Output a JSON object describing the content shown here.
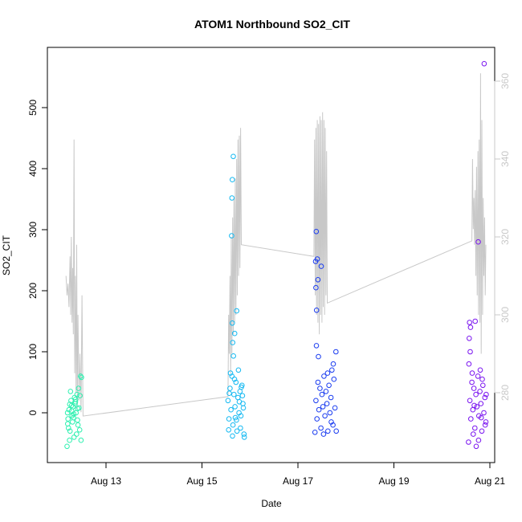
{
  "chart_data": {
    "type": "scatter",
    "title": "ATOM1 Northbound SO2_CIT",
    "xlabel": "Date",
    "ylabel": "SO2_CIT",
    "x_unit": "day",
    "xlim": [
      "2016-08-12",
      "2016-08-21"
    ],
    "ylim": [
      -75,
      610
    ],
    "y2lim": [
      265,
      368
    ],
    "x_ticks": [
      {
        "label": "Aug 13",
        "value": "2016-08-13"
      },
      {
        "label": "Aug 15",
        "value": "2016-08-15"
      },
      {
        "label": "Aug 17",
        "value": "2016-08-17"
      },
      {
        "label": "Aug 19",
        "value": "2016-08-19"
      },
      {
        "label": "Aug 21",
        "value": "2016-08-21"
      }
    ],
    "y_ticks": [
      0,
      100,
      200,
      300,
      400,
      500
    ],
    "y2_ticks": [
      280,
      300,
      320,
      340,
      360
    ],
    "y2_color": "#c8c8c8",
    "series": [
      {
        "color": "#2ef0b0",
        "points": [
          [
            "2016-08-12T05:00",
            -10
          ],
          [
            "2016-08-12T05:30",
            5
          ],
          [
            "2016-08-12T06:00",
            -30
          ],
          [
            "2016-08-12T06:30",
            20
          ],
          [
            "2016-08-12T07:00",
            -5
          ],
          [
            "2016-08-12T07:30",
            10
          ],
          [
            "2016-08-12T08:00",
            -40
          ],
          [
            "2016-08-12T08:30",
            15
          ],
          [
            "2016-08-12T09:00",
            0
          ],
          [
            "2016-08-12T09:30",
            30
          ],
          [
            "2016-08-12T10:00",
            -20
          ],
          [
            "2016-08-12T10:30",
            8
          ],
          [
            "2016-08-12T04:30",
            -55
          ],
          [
            "2016-08-12T05:15",
            -25
          ],
          [
            "2016-08-12T06:15",
            35
          ],
          [
            "2016-08-12T07:15",
            -15
          ],
          [
            "2016-08-12T08:15",
            25
          ],
          [
            "2016-08-12T09:15",
            -35
          ],
          [
            "2016-08-12T06:45",
            12
          ],
          [
            "2016-08-12T07:45",
            -8
          ],
          [
            "2016-08-12T10:15",
            40
          ],
          [
            "2016-08-12T04:45",
            0
          ],
          [
            "2016-08-12T05:45",
            -45
          ],
          [
            "2016-08-12T08:45",
            18
          ],
          [
            "2016-08-12T09:45",
            -12
          ],
          [
            "2016-08-12T11:00",
            28
          ],
          [
            "2016-08-12T11:15",
            60
          ],
          [
            "2016-08-12T11:30",
            -45
          ],
          [
            "2016-08-12T11:45",
            58
          ],
          [
            "2016-08-12T06:50",
            3
          ],
          [
            "2016-08-12T07:50",
            -2
          ],
          [
            "2016-08-12T08:50",
            22
          ],
          [
            "2016-08-12T09:50",
            7
          ],
          [
            "2016-08-12T10:50",
            -28
          ],
          [
            "2016-08-12T05:50",
            14
          ],
          [
            "2016-08-12T04:50",
            -18
          ]
        ]
      },
      {
        "color": "#14b9f2",
        "points": [
          [
            "2016-08-15T13:00",
            20
          ],
          [
            "2016-08-15T13:30",
            -10
          ],
          [
            "2016-08-15T14:00",
            40
          ],
          [
            "2016-08-15T14:30",
            5
          ],
          [
            "2016-08-15T15:00",
            60
          ],
          [
            "2016-08-15T15:30",
            -20
          ],
          [
            "2016-08-15T16:00",
            30
          ],
          [
            "2016-08-15T16:30",
            10
          ],
          [
            "2016-08-15T17:00",
            50
          ],
          [
            "2016-08-15T17:30",
            -30
          ],
          [
            "2016-08-15T18:00",
            25
          ],
          [
            "2016-08-15T18:30",
            0
          ],
          [
            "2016-08-15T19:00",
            35
          ],
          [
            "2016-08-15T19:30",
            -5
          ],
          [
            "2016-08-15T20:00",
            45
          ],
          [
            "2016-08-15T20:30",
            15
          ],
          [
            "2016-08-15T21:00",
            -35
          ],
          [
            "2016-08-15T14:15",
            65
          ],
          [
            "2016-08-15T15:15",
            -38
          ],
          [
            "2016-08-15T16:15",
            55
          ],
          [
            "2016-08-15T17:15",
            -12
          ],
          [
            "2016-08-15T18:15",
            70
          ],
          [
            "2016-08-15T19:15",
            -25
          ],
          [
            "2016-08-15T20:15",
            28
          ],
          [
            "2016-08-15T15:45",
            93
          ],
          [
            "2016-08-15T15:20",
            115
          ],
          [
            "2016-08-15T16:20",
            130
          ],
          [
            "2016-08-15T15:10",
            147
          ],
          [
            "2016-08-15T17:20",
            167
          ],
          [
            "2016-08-15T14:50",
            290
          ],
          [
            "2016-08-15T15:00",
            352
          ],
          [
            "2016-08-15T15:10",
            382
          ],
          [
            "2016-08-15T15:40",
            420
          ],
          [
            "2016-08-15T13:20",
            -28
          ],
          [
            "2016-08-15T21:10",
            -40
          ],
          [
            "2016-08-15T20:40",
            8
          ],
          [
            "2016-08-15T19:40",
            42
          ],
          [
            "2016-08-15T13:40",
            32
          ],
          [
            "2016-08-15T16:40",
            -8
          ],
          [
            "2016-08-15T18:40",
            18
          ]
        ]
      },
      {
        "color": "#1a3cf0",
        "points": [
          [
            "2016-08-17T09:00",
            20
          ],
          [
            "2016-08-17T09:30",
            -10
          ],
          [
            "2016-08-17T10:00",
            50
          ],
          [
            "2016-08-17T10:30",
            5
          ],
          [
            "2016-08-17T11:00",
            40
          ],
          [
            "2016-08-17T11:30",
            -25
          ],
          [
            "2016-08-17T12:00",
            30
          ],
          [
            "2016-08-17T12:30",
            10
          ],
          [
            "2016-08-17T13:00",
            60
          ],
          [
            "2016-08-17T13:30",
            -5
          ],
          [
            "2016-08-17T14:00",
            35
          ],
          [
            "2016-08-17T14:30",
            15
          ],
          [
            "2016-08-17T15:00",
            -30
          ],
          [
            "2016-08-17T15:30",
            45
          ],
          [
            "2016-08-17T16:00",
            0
          ],
          [
            "2016-08-17T16:30",
            25
          ],
          [
            "2016-08-17T17:00",
            70
          ],
          [
            "2016-08-17T17:30",
            -20
          ],
          [
            "2016-08-17T18:00",
            55
          ],
          [
            "2016-08-17T18:30",
            8
          ],
          [
            "2016-08-17T19:00",
            100
          ],
          [
            "2016-08-17T10:15",
            92
          ],
          [
            "2016-08-17T09:15",
            110
          ],
          [
            "2016-08-17T09:20",
            168
          ],
          [
            "2016-08-17T09:00",
            205
          ],
          [
            "2016-08-17T10:00",
            218
          ],
          [
            "2016-08-17T08:50",
            248
          ],
          [
            "2016-08-17T09:40",
            252
          ],
          [
            "2016-08-17T11:40",
            240
          ],
          [
            "2016-08-17T09:10",
            297
          ],
          [
            "2016-08-17T08:30",
            -32
          ],
          [
            "2016-08-17T19:10",
            -30
          ],
          [
            "2016-08-17T12:50",
            -35
          ],
          [
            "2016-08-17T17:40",
            80
          ],
          [
            "2016-08-17T14:50",
            65
          ],
          [
            "2016-08-17T16:40",
            -15
          ]
        ]
      },
      {
        "color": "#7a14f0",
        "points": [
          [
            "2016-08-20T14:00",
            20
          ],
          [
            "2016-08-20T14:30",
            -10
          ],
          [
            "2016-08-20T15:00",
            50
          ],
          [
            "2016-08-20T15:30",
            5
          ],
          [
            "2016-08-20T16:00",
            40
          ],
          [
            "2016-08-20T16:30",
            -25
          ],
          [
            "2016-08-20T17:00",
            30
          ],
          [
            "2016-08-20T17:30",
            10
          ],
          [
            "2016-08-20T18:00",
            60
          ],
          [
            "2016-08-20T18:30",
            -5
          ],
          [
            "2016-08-20T19:00",
            35
          ],
          [
            "2016-08-20T19:30",
            15
          ],
          [
            "2016-08-20T20:00",
            -30
          ],
          [
            "2016-08-20T20:30",
            45
          ],
          [
            "2016-08-20T21:00",
            0
          ],
          [
            "2016-08-20T21:30",
            25
          ],
          [
            "2016-08-20T22:00",
            -15
          ],
          [
            "2016-08-20T13:30",
            80
          ],
          [
            "2016-08-20T14:10",
            100
          ],
          [
            "2016-08-20T13:40",
            122
          ],
          [
            "2016-08-20T14:20",
            140
          ],
          [
            "2016-08-20T13:50",
            148
          ],
          [
            "2016-08-20T16:40",
            150
          ],
          [
            "2016-08-20T15:10",
            65
          ],
          [
            "2016-08-20T13:20",
            -48
          ],
          [
            "2016-08-20T17:10",
            -55
          ],
          [
            "2016-08-20T18:20",
            -45
          ],
          [
            "2016-08-20T19:10",
            70
          ],
          [
            "2016-08-20T20:10",
            55
          ],
          [
            "2016-08-20T21:40",
            -20
          ],
          [
            "2016-08-20T18:10",
            280
          ],
          [
            "2016-08-20T21:10",
            572
          ],
          [
            "2016-08-20T15:40",
            -35
          ],
          [
            "2016-08-20T22:10",
            30
          ],
          [
            "2016-08-20T16:10",
            12
          ],
          [
            "2016-08-20T19:40",
            -8
          ]
        ]
      },
      {
        "type": "line",
        "axis": "right",
        "color": "#c8c8c8",
        "points": [
          [
            "2016-08-12T04:00",
            310
          ],
          [
            "2016-08-12T04:30",
            305
          ],
          [
            "2016-08-12T05:00",
            308
          ],
          [
            "2016-08-12T05:30",
            302
          ],
          [
            "2016-08-12T06:00",
            315
          ],
          [
            "2016-08-12T06:20",
            300
          ],
          [
            "2016-08-12T06:40",
            320
          ],
          [
            "2016-08-12T07:00",
            298
          ],
          [
            "2016-08-12T07:20",
            312
          ],
          [
            "2016-08-12T07:40",
            295
          ],
          [
            "2016-08-12T08:00",
            345
          ],
          [
            "2016-08-12T08:20",
            285
          ],
          [
            "2016-08-12T08:40",
            310
          ],
          [
            "2016-08-12T09:00",
            280
          ],
          [
            "2016-08-12T09:20",
            318
          ],
          [
            "2016-08-12T09:40",
            276
          ],
          [
            "2016-08-12T10:00",
            300
          ],
          [
            "2016-08-12T10:30",
            278
          ],
          [
            "2016-08-12T11:00",
            290
          ],
          [
            "2016-08-12T11:30",
            275
          ],
          [
            "2016-08-12T12:00",
            305
          ],
          [
            "2016-08-12T12:30",
            274
          ],
          [
            "2016-08-15T13:00",
            279
          ],
          [
            "2016-08-15T13:20",
            300
          ],
          [
            "2016-08-15T13:40",
            290
          ],
          [
            "2016-08-15T14:00",
            310
          ],
          [
            "2016-08-15T14:20",
            285
          ],
          [
            "2016-08-15T14:40",
            320
          ],
          [
            "2016-08-15T15:00",
            290
          ],
          [
            "2016-08-15T15:20",
            325
          ],
          [
            "2016-08-15T15:40",
            295
          ],
          [
            "2016-08-15T16:00",
            330
          ],
          [
            "2016-08-15T16:20",
            298
          ],
          [
            "2016-08-15T16:40",
            335
          ],
          [
            "2016-08-15T17:00",
            300
          ],
          [
            "2016-08-15T17:20",
            340
          ],
          [
            "2016-08-15T17:40",
            305
          ],
          [
            "2016-08-15T18:00",
            345
          ],
          [
            "2016-08-15T18:20",
            310
          ],
          [
            "2016-08-15T18:40",
            346
          ],
          [
            "2016-08-15T19:00",
            312
          ],
          [
            "2016-08-15T19:20",
            348
          ],
          [
            "2016-08-15T19:40",
            318
          ],
          [
            "2016-08-17T08:00",
            315
          ],
          [
            "2016-08-17T08:20",
            345
          ],
          [
            "2016-08-17T08:40",
            305
          ],
          [
            "2016-08-17T09:00",
            348
          ],
          [
            "2016-08-17T09:20",
            300
          ],
          [
            "2016-08-17T09:40",
            350
          ],
          [
            "2016-08-17T10:00",
            298
          ],
          [
            "2016-08-17T10:20",
            349
          ],
          [
            "2016-08-17T10:40",
            295
          ],
          [
            "2016-08-17T11:00",
            351
          ],
          [
            "2016-08-17T11:20",
            300
          ],
          [
            "2016-08-17T11:40",
            350
          ],
          [
            "2016-08-17T12:00",
            298
          ],
          [
            "2016-08-17T12:20",
            352
          ],
          [
            "2016-08-17T12:40",
            302
          ],
          [
            "2016-08-17T13:00",
            350
          ],
          [
            "2016-08-17T13:20",
            300
          ],
          [
            "2016-08-17T13:40",
            348
          ],
          [
            "2016-08-17T14:00",
            305
          ],
          [
            "2016-08-17T14:20",
            342
          ],
          [
            "2016-08-17T14:40",
            303
          ],
          [
            "2016-08-20T15:00",
            319
          ],
          [
            "2016-08-20T15:20",
            340
          ],
          [
            "2016-08-20T15:40",
            322
          ],
          [
            "2016-08-20T16:00",
            330
          ],
          [
            "2016-08-20T16:20",
            318
          ],
          [
            "2016-08-20T16:40",
            332
          ],
          [
            "2016-08-20T17:00",
            310
          ],
          [
            "2016-08-20T17:20",
            338
          ],
          [
            "2016-08-20T17:40",
            305
          ],
          [
            "2016-08-20T18:00",
            342
          ],
          [
            "2016-08-20T18:20",
            300
          ],
          [
            "2016-08-20T18:40",
            345
          ],
          [
            "2016-08-20T19:00",
            298
          ],
          [
            "2016-08-20T19:20",
            362
          ],
          [
            "2016-08-20T19:40",
            290
          ],
          [
            "2016-08-20T20:00",
            350
          ],
          [
            "2016-08-20T20:20",
            300
          ],
          [
            "2016-08-20T20:40",
            330
          ],
          [
            "2016-08-20T21:00",
            310
          ],
          [
            "2016-08-20T21:20",
            325
          ],
          [
            "2016-08-20T21:40",
            305
          ],
          [
            "2016-08-20T22:00",
            318
          ]
        ]
      }
    ]
  }
}
